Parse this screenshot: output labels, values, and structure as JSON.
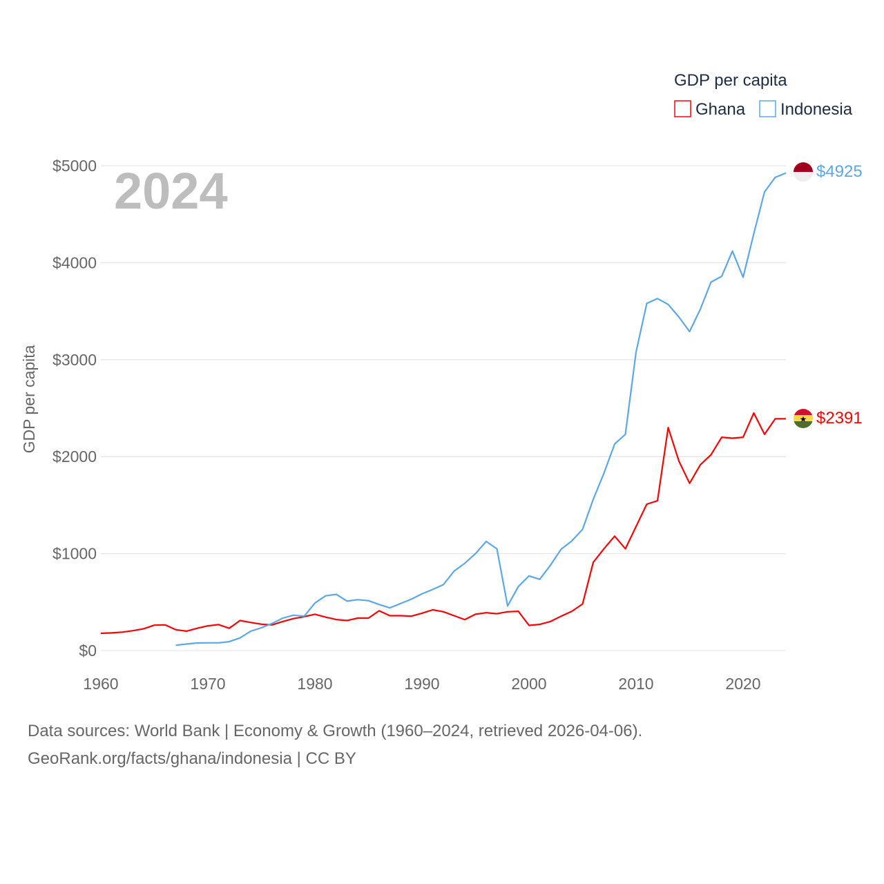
{
  "chart_data": {
    "type": "line",
    "title": "2024",
    "xlabel": "",
    "ylabel": "GDP per capita",
    "legend_title": "GDP per capita",
    "legend_position": "top-right",
    "xlim": [
      1960,
      2024
    ],
    "ylim": [
      0,
      5000
    ],
    "grid": true,
    "y_ticks": [
      0,
      1000,
      2000,
      3000,
      4000,
      5000
    ],
    "y_tick_labels": [
      "$0",
      "$1000",
      "$2000",
      "$3000",
      "$4000",
      "$5000"
    ],
    "x_ticks": [
      1960,
      1970,
      1980,
      1990,
      2000,
      2010,
      2020
    ],
    "x_tick_labels": [
      "1960",
      "1970",
      "1980",
      "1990",
      "2000",
      "2010",
      "2020"
    ],
    "series": [
      {
        "name": "Ghana",
        "color": "#ff0000",
        "end_label": "$2391",
        "start_year": 1960,
        "values": [
          178,
          182,
          190,
          205,
          225,
          262,
          265,
          215,
          200,
          230,
          255,
          268,
          230,
          310,
          290,
          272,
          265,
          300,
          330,
          350,
          375,
          345,
          320,
          310,
          335,
          335,
          410,
          360,
          360,
          355,
          385,
          420,
          400,
          360,
          320,
          375,
          390,
          380,
          400,
          405,
          260,
          270,
          300,
          355,
          405,
          480,
          910,
          1050,
          1180,
          1050,
          1280,
          1510,
          1545,
          2300,
          1955,
          1725,
          1915,
          2020,
          2200,
          2190,
          2200,
          2450,
          2230,
          2390,
          2391
        ]
      },
      {
        "name": "Indonesia",
        "color": "#5ba7ea",
        "end_label": "$4925",
        "start_year": 1967,
        "values": [
          55,
          68,
          78,
          80,
          80,
          92,
          130,
          200,
          235,
          280,
          335,
          365,
          355,
          490,
          565,
          580,
          510,
          525,
          515,
          475,
          440,
          485,
          530,
          585,
          630,
          680,
          820,
          900,
          1000,
          1125,
          1050,
          460,
          660,
          770,
          735,
          880,
          1045,
          1130,
          1250,
          1560,
          1830,
          2130,
          2230,
          3080,
          3580,
          3630,
          3570,
          3440,
          3290,
          3520,
          3800,
          3860,
          4120,
          3850,
          4300,
          4730,
          4880,
          4925
        ]
      }
    ]
  },
  "footer": {
    "line1": "Data sources: World Bank | Economy & Growth (1960–2024, retrieved 2026-04-06).",
    "line2": "GeoRank.org/facts/ghana/indonesia | CC BY"
  }
}
